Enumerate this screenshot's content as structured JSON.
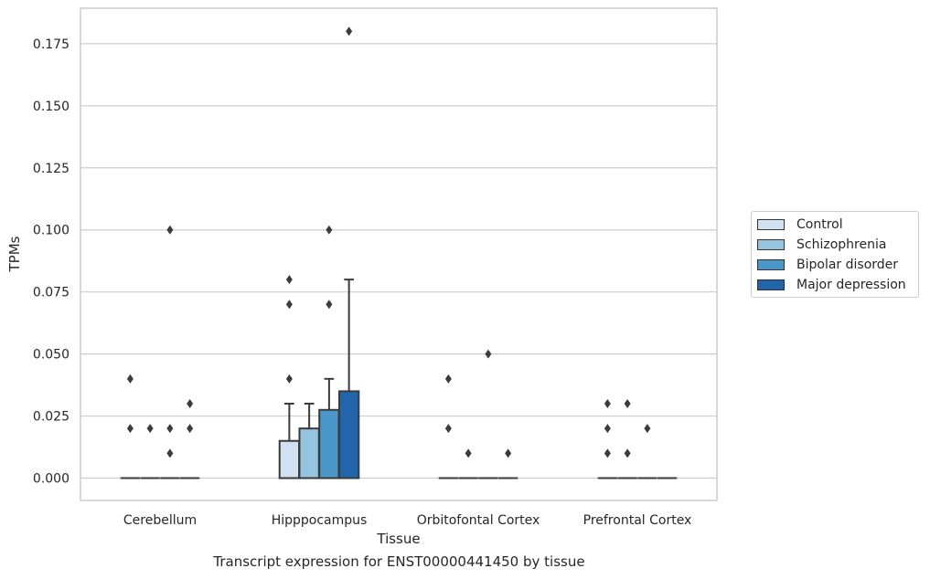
{
  "chart_data": {
    "type": "box",
    "xlabel": "Tissue",
    "ylabel": "TPMs",
    "ylim": [
      -0.009,
      0.1893
    ],
    "yticks": [
      0.0,
      0.025,
      0.05,
      0.075,
      0.1,
      0.125,
      0.15,
      0.175
    ],
    "ytick_labels": [
      "0.000",
      "0.025",
      "0.050",
      "0.075",
      "0.100",
      "0.125",
      "0.150",
      "0.175"
    ],
    "grid": "horizontal",
    "legend_position": "right",
    "categories": [
      "Cerebellum",
      "Hipppocampus",
      "Orbitofontal Cortex",
      "Prefrontal Cortex"
    ],
    "series": [
      {
        "name": "Control",
        "color": "#d0e1f2",
        "boxes": [
          {
            "q1": 0,
            "median": 0,
            "q3": 0,
            "whisker_low": 0,
            "whisker_high": 0,
            "outliers": [
              0.04,
              0.02
            ]
          },
          {
            "q1": 0,
            "median": 0,
            "q3": 0.015,
            "whisker_low": 0,
            "whisker_high": 0.03,
            "outliers": [
              0.08,
              0.07,
              0.04
            ]
          },
          {
            "q1": 0,
            "median": 0,
            "q3": 0,
            "whisker_low": 0,
            "whisker_high": 0,
            "outliers": [
              0.04,
              0.02
            ]
          },
          {
            "q1": 0,
            "median": 0,
            "q3": 0,
            "whisker_low": 0,
            "whisker_high": 0,
            "outliers": [
              0.03,
              0.02,
              0.01
            ]
          }
        ]
      },
      {
        "name": "Schizophrenia",
        "color": "#94c4df",
        "boxes": [
          {
            "q1": 0,
            "median": 0,
            "q3": 0,
            "whisker_low": 0,
            "whisker_high": 0,
            "outliers": [
              0.02
            ]
          },
          {
            "q1": 0,
            "median": 0,
            "q3": 0.02,
            "whisker_low": 0,
            "whisker_high": 0.03,
            "outliers": []
          },
          {
            "q1": 0,
            "median": 0,
            "q3": 0,
            "whisker_low": 0,
            "whisker_high": 0,
            "outliers": [
              0.01
            ]
          },
          {
            "q1": 0,
            "median": 0,
            "q3": 0,
            "whisker_low": 0,
            "whisker_high": 0,
            "outliers": [
              0.03,
              0.01
            ]
          }
        ]
      },
      {
        "name": "Bipolar disorder",
        "color": "#4a98c9",
        "boxes": [
          {
            "q1": 0,
            "median": 0,
            "q3": 0,
            "whisker_low": 0,
            "whisker_high": 0,
            "outliers": [
              0.1,
              0.02,
              0.01
            ]
          },
          {
            "q1": 0,
            "median": 0,
            "q3": 0.0275,
            "whisker_low": 0,
            "whisker_high": 0.04,
            "outliers": [
              0.1,
              0.07
            ]
          },
          {
            "q1": 0,
            "median": 0,
            "q3": 0,
            "whisker_low": 0,
            "whisker_high": 0,
            "outliers": [
              0.05
            ]
          },
          {
            "q1": 0,
            "median": 0,
            "q3": 0,
            "whisker_low": 0,
            "whisker_high": 0,
            "outliers": [
              0.02
            ]
          }
        ]
      },
      {
        "name": "Major depression",
        "color": "#2166ac",
        "boxes": [
          {
            "q1": 0,
            "median": 0,
            "q3": 0,
            "whisker_low": 0,
            "whisker_high": 0,
            "outliers": [
              0.03,
              0.02
            ]
          },
          {
            "q1": 0,
            "median": 0,
            "q3": 0.035,
            "whisker_low": 0,
            "whisker_high": 0.08,
            "outliers": [
              0.18
            ]
          },
          {
            "q1": 0,
            "median": 0,
            "q3": 0,
            "whisker_low": 0,
            "whisker_high": 0,
            "outliers": [
              0.01
            ]
          },
          {
            "q1": 0,
            "median": 0,
            "q3": 0,
            "whisker_low": 0,
            "whisker_high": 0,
            "outliers": []
          }
        ]
      }
    ]
  },
  "caption": "Transcript expression for ENST00000441450 by tissue",
  "legend": {
    "items": [
      {
        "label": "Control",
        "color": "#d0e1f2"
      },
      {
        "label": "Schizophrenia",
        "color": "#94c4df"
      },
      {
        "label": "Bipolar disorder",
        "color": "#4a98c9"
      },
      {
        "label": "Major depression",
        "color": "#2166ac"
      }
    ]
  }
}
